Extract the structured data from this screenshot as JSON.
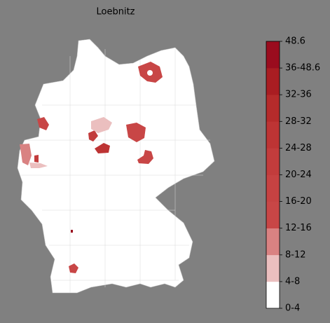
{
  "title": "Loebnitz",
  "colorbar": {
    "labels": [
      "0-4",
      "4-8",
      "8-12",
      "12-16",
      "16-20",
      "20-24",
      "24-28",
      "28-32",
      "32-36",
      "36-48.6",
      "48.6"
    ],
    "colors": [
      "#ffffff",
      "#ebbfbf",
      "#d98282",
      "#c84646",
      "#c64242",
      "#c23c3c",
      "#bd3434",
      "#b52b2b",
      "#a91d22",
      "#9a0c1e"
    ]
  }
}
